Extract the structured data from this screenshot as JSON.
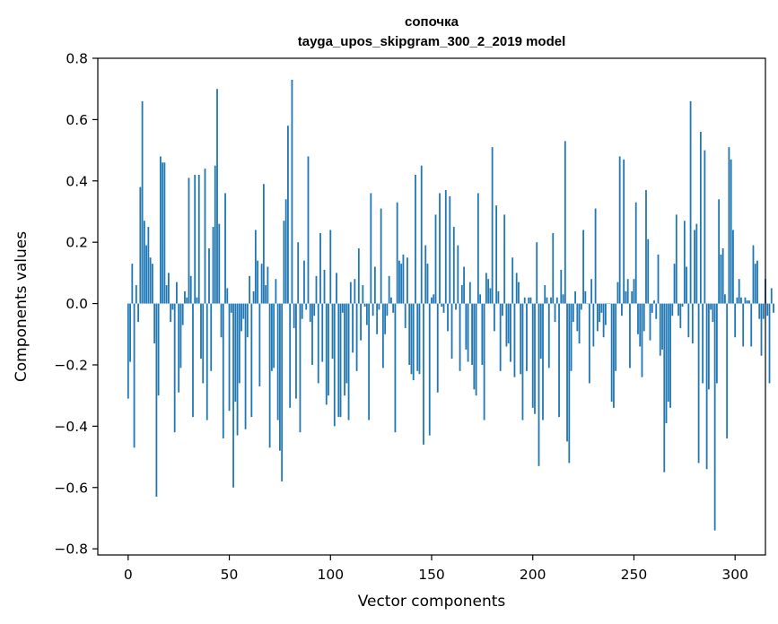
{
  "chart_data": {
    "type": "bar",
    "title": "сопочка",
    "subtitle": "tayga_upos_skipgram_300_2_2019 model",
    "xlabel": "Vector components",
    "ylabel": "Components values",
    "xlim": [
      -15,
      315
    ],
    "ylim": [
      -0.82,
      0.8
    ],
    "xticks": [
      0,
      50,
      100,
      150,
      200,
      250,
      300
    ],
    "yticks": [
      -0.8,
      -0.6,
      -0.4,
      -0.2,
      0.0,
      0.2,
      0.4,
      0.6,
      0.8
    ],
    "xtick_labels": [
      "0",
      "50",
      "100",
      "150",
      "200",
      "250",
      "300"
    ],
    "ytick_labels": [
      "−0.8",
      "−0.6",
      "−0.4",
      "−0.2",
      "0.0",
      "0.2",
      "0.4",
      "0.6",
      "0.8"
    ],
    "bar_color": "#1f77b4",
    "grid": false,
    "values": [
      -0.31,
      -0.19,
      0.13,
      -0.47,
      0.06,
      -0.06,
      0.38,
      0.66,
      0.27,
      0.19,
      0.25,
      0.15,
      0.13,
      -0.13,
      -0.63,
      -0.3,
      0.48,
      0.46,
      0.46,
      0.06,
      0.1,
      -0.06,
      -0.02,
      -0.42,
      0.07,
      -0.29,
      -0.21,
      -0.07,
      0.04,
      0.02,
      0.41,
      0.09,
      -0.37,
      0.42,
      0.02,
      0.42,
      -0.18,
      -0.26,
      0.44,
      -0.38,
      0.18,
      -0.22,
      0.25,
      0.45,
      0.7,
      0.26,
      -0.11,
      -0.44,
      0.36,
      0.05,
      -0.35,
      -0.03,
      -0.6,
      -0.32,
      -0.43,
      -0.26,
      -0.09,
      -0.05,
      -0.41,
      -0.11,
      0.09,
      -0.37,
      0.04,
      0.24,
      0.14,
      -0.27,
      0.13,
      0.39,
      0.06,
      0.12,
      -0.47,
      -0.22,
      -0.21,
      0.08,
      -0.38,
      -0.48,
      -0.58,
      0.27,
      0.34,
      0.58,
      -0.34,
      0.73,
      -0.08,
      -0.31,
      0.2,
      -0.42,
      -0.05,
      0.14,
      -0.02,
      0.48,
      -0.06,
      -0.2,
      -0.04,
      0.09,
      -0.26,
      0.23,
      -0.19,
      0.11,
      -0.33,
      -0.3,
      0.24,
      -0.18,
      -0.4,
      0.1,
      -0.37,
      -0.37,
      -0.03,
      -0.3,
      -0.26,
      -0.38,
      0.07,
      -0.16,
      0.08,
      -0.22,
      0.18,
      -0.12,
      0.06,
      -0.01,
      -0.07,
      -0.38,
      0.36,
      -0.04,
      0.12,
      -0.1,
      -0.02,
      0.31,
      -0.21,
      -0.1,
      -0.04,
      0.09,
      0.02,
      -0.03,
      -0.42,
      0.33,
      0.14,
      0.13,
      0.16,
      -0.08,
      0.15,
      -0.2,
      -0.23,
      -0.25,
      0.42,
      -0.22,
      -0.23,
      0.45,
      -0.46,
      0.19,
      0.13,
      -0.43,
      0.02,
      0.03,
      0.29,
      -0.29,
      0.36,
      -0.01,
      -0.03,
      0.37,
      -0.09,
      0.35,
      -0.18,
      0.25,
      -0.02,
      0.19,
      -0.22,
      0.06,
      0.12,
      -0.15,
      -0.19,
      0.07,
      -0.2,
      -0.28,
      -0.3,
      0.36,
      0.03,
      -0.2,
      -0.38,
      0.1,
      0.08,
      0.05,
      0.51,
      -0.09,
      0.32,
      0.04,
      -0.22,
      -0.04,
      0.29,
      -0.14,
      -0.13,
      -0.19,
      0.15,
      -0.24,
      0.1,
      0.07,
      -0.23,
      -0.38,
      0.02,
      -0.22,
      0.02,
      0.02,
      -0.34,
      -0.36,
      0.2,
      -0.53,
      -0.18,
      -0.38,
      0.06,
      0.02,
      -0.21,
      0.02,
      0.23,
      -0.06,
      0.02,
      -0.37,
      0.11,
      0.03,
      0.53,
      -0.45,
      -0.52,
      -0.22,
      -0.06,
      0.04,
      -0.09,
      -0.13,
      -0.02,
      0.24,
      0.04,
      0.0,
      -0.26,
      0.08,
      -0.14,
      0.31,
      -0.09,
      -0.06,
      -0.03,
      -0.11,
      -0.07,
      0.0,
      0.0,
      -0.32,
      -0.34,
      -0.22,
      0.07,
      0.48,
      -0.04,
      0.47,
      0.04,
      0.08,
      -0.21,
      0.04,
      0.08,
      0.33,
      -0.1,
      -0.14,
      -0.24,
      -0.09,
      0.37,
      0.21,
      -0.12,
      -0.03,
      0.01,
      -0.05,
      0.16,
      -0.17,
      -0.15,
      -0.55,
      -0.39,
      -0.32,
      -0.34,
      -0.04,
      0.13,
      0.29,
      -0.04,
      -0.08,
      -0.01,
      0.27,
      0.12,
      -0.11,
      0.66,
      -0.13,
      0.24,
      0.26,
      -0.52,
      0.56,
      -0.26,
      0.5,
      -0.54,
      -0.28,
      -0.02,
      -0.06,
      -0.74,
      -0.26,
      0.34,
      0.16,
      0.18,
      0.03,
      -0.44,
      0.51,
      0.47,
      0.24,
      -0.11,
      0.02,
      0.08,
      0.02,
      -0.14,
      0.02,
      0.01,
      0.01,
      -0.14,
      0.19,
      0.13,
      0.14,
      -0.05,
      -0.17,
      -0.05,
      0.08,
      -0.04,
      -0.26,
      0.05,
      -0.03
    ]
  }
}
